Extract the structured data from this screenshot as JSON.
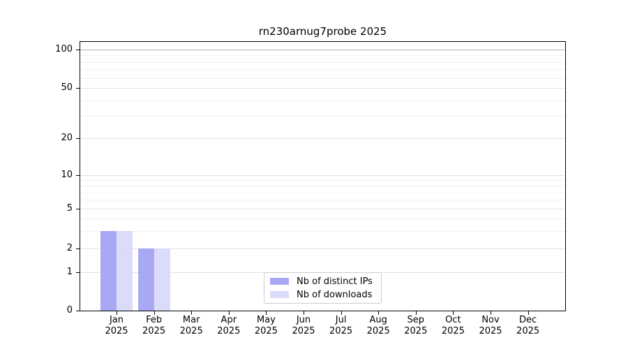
{
  "chart_data": {
    "type": "bar",
    "title": "rn230arnug7probe 2025",
    "scale": "symlog",
    "x": {
      "months": [
        "Jan",
        "Feb",
        "Mar",
        "Apr",
        "May",
        "Jun",
        "Jul",
        "Aug",
        "Sep",
        "Oct",
        "Nov",
        "Dec"
      ],
      "year": "2025"
    },
    "categories": [
      "Jan 2025",
      "Feb 2025",
      "Mar 2025",
      "Apr 2025",
      "May 2025",
      "Jun 2025",
      "Jul 2025",
      "Aug 2025",
      "Sep 2025",
      "Oct 2025",
      "Nov 2025",
      "Dec 2025"
    ],
    "series": [
      {
        "name": "Nb of distinct IPs",
        "color": "#9e9ef3",
        "values": [
          3,
          2,
          0,
          0,
          0,
          0,
          0,
          0,
          0,
          0,
          0,
          0
        ]
      },
      {
        "name": "Nb of downloads",
        "color": "#d7d7fa",
        "values": [
          3,
          2,
          0,
          0,
          0,
          0,
          0,
          0,
          0,
          0,
          0,
          0
        ]
      }
    ],
    "y_axis": {
      "major_tick_labels": [
        "100",
        "50",
        "20",
        "10",
        "5",
        "2",
        "1",
        "0"
      ],
      "major_ticks": [
        100,
        50,
        20,
        10,
        5,
        2,
        1,
        0
      ],
      "minor_ticks": [
        90,
        80,
        70,
        60,
        40,
        30,
        9,
        8,
        7,
        6,
        4,
        3
      ],
      "ylim": [
        0,
        120
      ]
    },
    "legend_position": "lower-center-inside",
    "grid": true
  },
  "legend": {
    "items": [
      {
        "label": "Nb of distinct IPs",
        "color": "#9e9ef3"
      },
      {
        "label": "Nb of downloads",
        "color": "#d7d7fa"
      }
    ]
  },
  "colors": {
    "bar_distinct_ips": "#9e9ef3",
    "bar_downloads": "#d7d7fa",
    "grid_major": "#e2e2e2",
    "grid_minor": "#f0f0f0",
    "grid_top": "#b5b5b5",
    "axis": "#000000"
  }
}
